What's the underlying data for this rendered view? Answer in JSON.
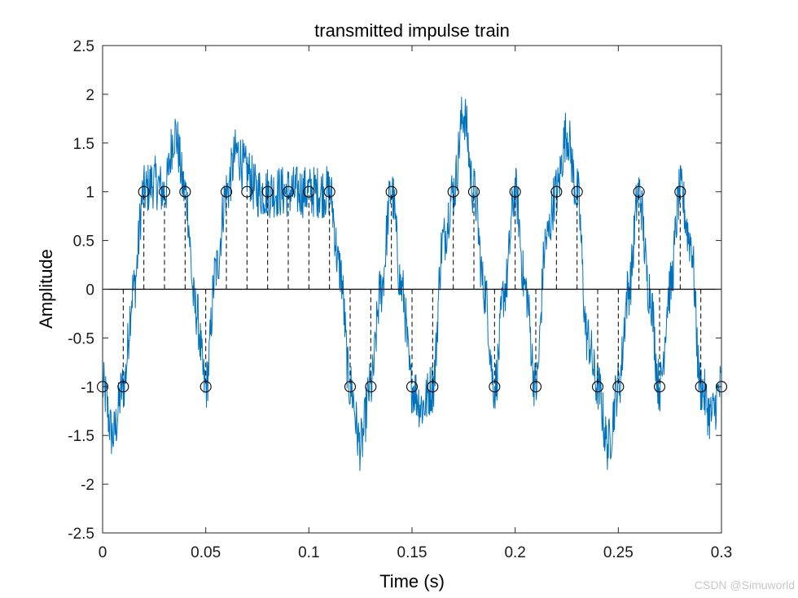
{
  "chart_data": {
    "type": "line",
    "title": "transmitted impulse train",
    "xlabel": "Time (s)",
    "ylabel": "Amplitude",
    "xlim": [
      0,
      0.3
    ],
    "ylim": [
      -2.5,
      2.5
    ],
    "xticks": [
      0,
      0.05,
      0.1,
      0.15,
      0.2,
      0.25,
      0.3
    ],
    "xtick_labels": [
      "0",
      "0.05",
      "0.1",
      "0.15",
      "0.2",
      "0.25",
      "0.3"
    ],
    "yticks": [
      -2.5,
      -2,
      -1.5,
      -1,
      -0.5,
      0,
      0.5,
      1,
      1.5,
      2,
      2.5
    ],
    "ytick_labels": [
      "-2.5",
      "-2",
      "-1.5",
      "-1",
      "-0.5",
      "0",
      "0.5",
      "1",
      "1.5",
      "2",
      "2.5"
    ],
    "grid": false,
    "series": [
      {
        "style": "noisy-line",
        "color": "#0072BD",
        "x": [
          0,
          0.005,
          0.01,
          0.015,
          0.02,
          0.025,
          0.03,
          0.035,
          0.04,
          0.045,
          0.05,
          0.055,
          0.06,
          0.065,
          0.07,
          0.075,
          0.08,
          0.085,
          0.09,
          0.095,
          0.1,
          0.105,
          0.11,
          0.115,
          0.12,
          0.125,
          0.13,
          0.135,
          0.14,
          0.145,
          0.15,
          0.155,
          0.16,
          0.165,
          0.17,
          0.175,
          0.18,
          0.185,
          0.19,
          0.195,
          0.2,
          0.205,
          0.21,
          0.215,
          0.22,
          0.225,
          0.23,
          0.235,
          0.24,
          0.245,
          0.25,
          0.255,
          0.26,
          0.265,
          0.27,
          0.275,
          0.28,
          0.285,
          0.29,
          0.295,
          0.3
        ],
        "y": [
          -1.0,
          -1.5,
          -1.0,
          0.0,
          1.0,
          1.1,
          1.0,
          1.6,
          1.0,
          -0.2,
          -1.0,
          0.2,
          1.0,
          1.4,
          1.2,
          1.0,
          1.0,
          1.0,
          1.0,
          1.0,
          1.0,
          1.0,
          1.0,
          0.2,
          -1.0,
          -1.6,
          -1.0,
          0.0,
          1.0,
          0.0,
          -1.0,
          -1.2,
          -1.0,
          0.5,
          1.0,
          1.8,
          1.0,
          0.0,
          -1.0,
          0.0,
          1.0,
          0.0,
          -1.0,
          0.5,
          1.0,
          1.6,
          1.0,
          -0.5,
          -1.0,
          -1.6,
          -1.0,
          0.0,
          1.0,
          0.0,
          -1.0,
          0.0,
          1.0,
          0.5,
          -1.0,
          -1.3,
          -1.0
        ]
      },
      {
        "style": "stem",
        "color": "#000000",
        "x": [
          0,
          0.01,
          0.02,
          0.03,
          0.04,
          0.05,
          0.06,
          0.07,
          0.08,
          0.09,
          0.1,
          0.11,
          0.12,
          0.13,
          0.14,
          0.15,
          0.16,
          0.17,
          0.18,
          0.19,
          0.2,
          0.21,
          0.22,
          0.23,
          0.24,
          0.25,
          0.26,
          0.27,
          0.28,
          0.29,
          0.3
        ],
        "y": [
          -1,
          -1,
          1,
          1,
          1,
          -1,
          1,
          1,
          1,
          1,
          1,
          1,
          -1,
          -1,
          1,
          -1,
          -1,
          1,
          1,
          -1,
          1,
          -1,
          1,
          1,
          -1,
          -1,
          1,
          -1,
          1,
          -1,
          -1
        ]
      }
    ]
  },
  "watermark": "CSDN @Simuworld"
}
